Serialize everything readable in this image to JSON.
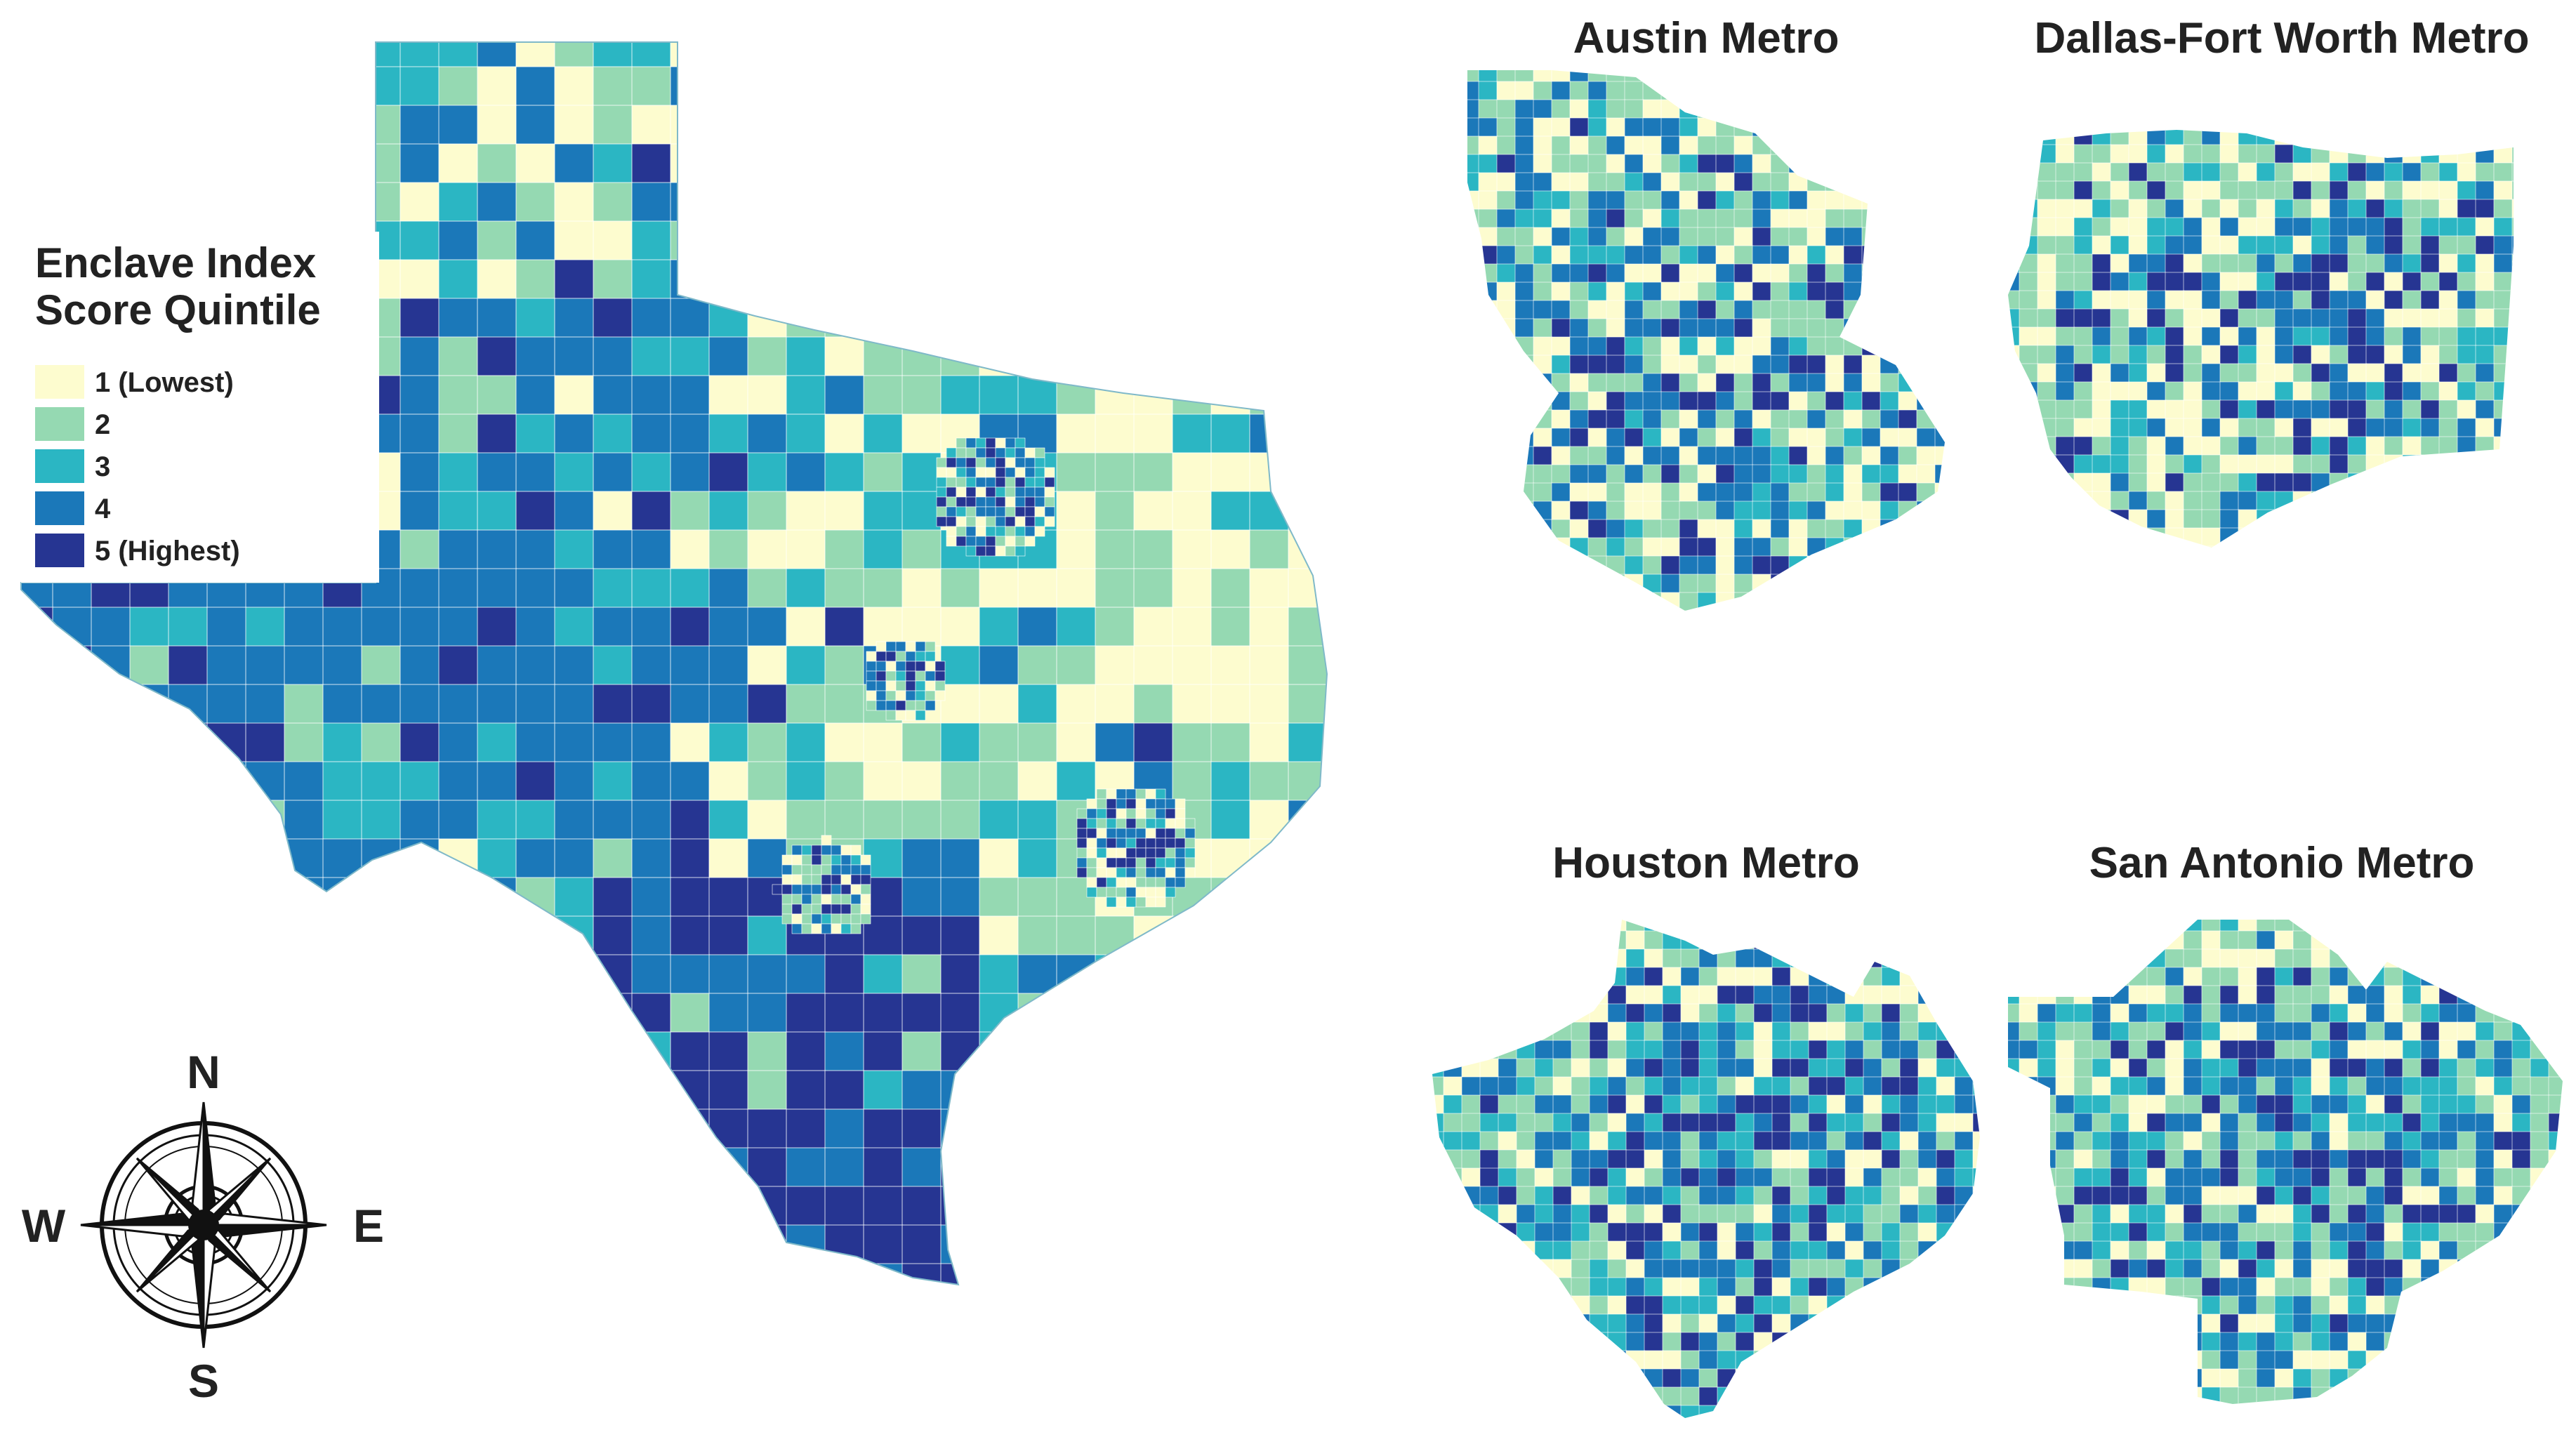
{
  "legend": {
    "title_line1": "Enclave Index",
    "title_line2": "Score Quintile",
    "items": [
      {
        "label": "1 (Lowest)",
        "color": "#fdfccf"
      },
      {
        "label": "2",
        "color": "#95d9b2"
      },
      {
        "label": "3",
        "color": "#2bb6c3"
      },
      {
        "label": "4",
        "color": "#1b78b9"
      },
      {
        "label": "5 (Highest)",
        "color": "#263592"
      }
    ]
  },
  "compass": {
    "north": "N",
    "south": "S",
    "east": "E",
    "west": "W"
  },
  "insets": [
    {
      "title": "Austin Metro"
    },
    {
      "title": "Dallas-Fort Worth Metro"
    },
    {
      "title": "Houston Metro"
    },
    {
      "title": "San Antonio Metro"
    }
  ],
  "colors": {
    "boundary": "#ffffff",
    "compass_stroke": "#111111"
  }
}
